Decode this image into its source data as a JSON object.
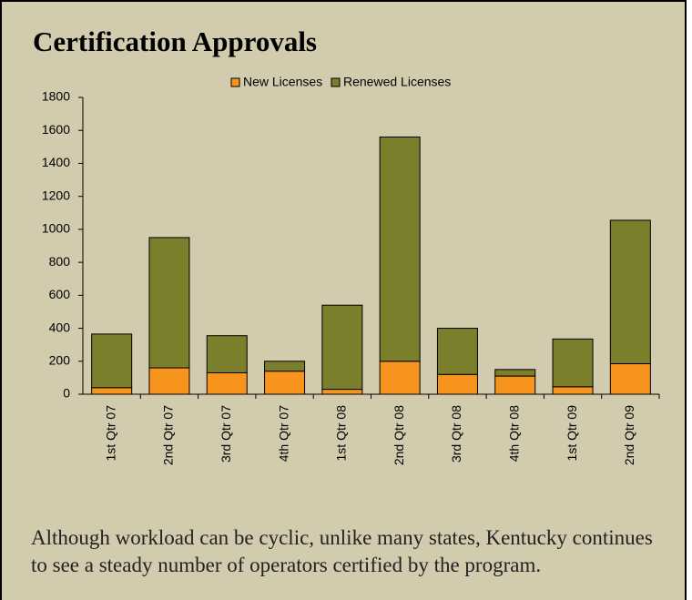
{
  "chart_data": {
    "type": "stacked_bar",
    "title": "Certification Approvals",
    "categories": [
      "1st Qtr 07",
      "2nd Qtr 07",
      "3rd Qtr 07",
      "4th Qtr 07",
      "1st Qtr 08",
      "2nd Qtr 08",
      "3rd Qtr 08",
      "4th Qtr 08",
      "1st Qtr 09",
      "2nd Qtr 09"
    ],
    "series": [
      {
        "name": "New Licenses",
        "color": "#f7941d",
        "values": [
          40,
          160,
          130,
          140,
          30,
          200,
          120,
          110,
          45,
          185
        ]
      },
      {
        "name": "Renewed Licenses",
        "color": "#7b7e2b",
        "values": [
          325,
          790,
          225,
          60,
          510,
          1360,
          280,
          40,
          290,
          870
        ]
      }
    ],
    "ylim": [
      0,
      1800
    ],
    "yticks": [
      0,
      200,
      400,
      600,
      800,
      1000,
      1200,
      1400,
      1600,
      1800
    ],
    "grid": false,
    "legend": "top"
  },
  "caption": "Although workload can be cyclic, unlike many states, Kentucky continues to see a steady number of operators certified by the program."
}
